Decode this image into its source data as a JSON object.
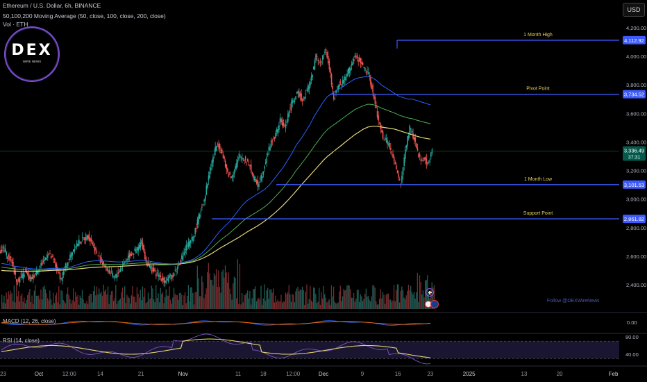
{
  "header": {
    "symbol": "Ethereum / U.S. Dollar, 6h, BINANCE",
    "ma_indicator": "50,100,200 Moving Average (50, close, 100, close, 200, close)",
    "vol_indicator": "Vol · ETH",
    "currency_button": "USD"
  },
  "logo": {
    "main": "DEX",
    "sub": "WIRE NEWS"
  },
  "watermark": "Follow @DEXWireNews",
  "colors": {
    "background": "#000000",
    "candle_up": "#26a69a",
    "candle_down": "#ef5350",
    "ma50": "#2962ff",
    "ma100": "#4caf50",
    "ma200": "#e6d67a",
    "level_line": "#3d5afe",
    "macd": "#2962ff",
    "signal": "#ff6d00",
    "rsi": "#7e57c2",
    "rsi_ma": "#e6d67a",
    "current_price": "#089981"
  },
  "chart_data": {
    "type": "line",
    "title": "Ethereum / U.S. Dollar, 6h, BINANCE",
    "price_axis": {
      "ticks": [
        "4,200.00",
        "4,000.00",
        "3,800.00",
        "3,600.00",
        "3,400.00",
        "3,200.00",
        "3,000.00",
        "2,800.00",
        "2,600.00",
        "2,400.00"
      ],
      "tick_values": [
        4200,
        4000,
        3800,
        3600,
        3400,
        3200,
        3000,
        2800,
        2600,
        2400
      ],
      "ylim": [
        2300,
        4300
      ]
    },
    "time_axis": {
      "labels": [
        "23",
        "Oct",
        "12:00",
        "14",
        "21",
        "Nov",
        "11",
        "18",
        "12:00",
        "Dec",
        "9",
        "16",
        "23",
        "2025",
        "13",
        "20",
        "Feb"
      ],
      "label_fraction": [
        0.0,
        0.06,
        0.107,
        0.155,
        0.218,
        0.283,
        0.368,
        0.407,
        0.453,
        0.5,
        0.56,
        0.615,
        0.665,
        0.725,
        0.81,
        0.865,
        0.948
      ]
    },
    "levels": [
      {
        "name": "1 Month High",
        "value": 4112.92,
        "tag": "4,112.92"
      },
      {
        "name": "Pivot Point",
        "value": 3734.52,
        "tag": "3,734.52"
      },
      {
        "name": "1 Month Low",
        "value": 3101.53,
        "tag": "3,101.53"
      },
      {
        "name": "Support Point",
        "value": 2861.82,
        "tag": "2,861.82"
      }
    ],
    "current_price": {
      "value": 3336.49,
      "tag": "3,336.49",
      "countdown": "37:31"
    },
    "close_series_daily": [
      2650,
      2600,
      2560,
      2420,
      2450,
      2490,
      2430,
      2470,
      2520,
      2560,
      2620,
      2580,
      2510,
      2440,
      2530,
      2600,
      2670,
      2700,
      2720,
      2740,
      2690,
      2620,
      2560,
      2520,
      2480,
      2450,
      2500,
      2550,
      2600,
      2620,
      2650,
      2700,
      2560,
      2520,
      2480,
      2460,
      2430,
      2440,
      2470,
      2520,
      2590,
      2670,
      2700,
      2780,
      2900,
      3000,
      3160,
      3300,
      3400,
      3320,
      3200,
      3150,
      3230,
      3300,
      3280,
      3250,
      3150,
      3100,
      3180,
      3300,
      3400,
      3450,
      3550,
      3500,
      3620,
      3700,
      3740,
      3700,
      3760,
      3850,
      4000,
      3950,
      4050,
      3920,
      3700,
      3800,
      3820,
      3880,
      3950,
      4000,
      3960,
      3900,
      3860,
      3700,
      3550,
      3430,
      3400,
      3320,
      3200,
      3100,
      3350,
      3500,
      3420,
      3300,
      3280,
      3250,
      3336
    ],
    "ma50": [
      2550,
      2545,
      2538,
      2530,
      2525,
      2520,
      2515,
      2512,
      2510,
      2510,
      2512,
      2515,
      2516,
      2515,
      2517,
      2520,
      2530,
      2540,
      2550,
      2560,
      2565,
      2568,
      2568,
      2567,
      2565,
      2562,
      2560,
      2560,
      2562,
      2565,
      2568,
      2572,
      2570,
      2566,
      2560,
      2556,
      2550,
      2548,
      2546,
      2548,
      2553,
      2560,
      2568,
      2580,
      2600,
      2625,
      2660,
      2700,
      2740,
      2780,
      2810,
      2840,
      2880,
      2920,
      2960,
      2990,
      3010,
      3030,
      3050,
      3070,
      3100,
      3140,
      3180,
      3220,
      3270,
      3320,
      3380,
      3420,
      3470,
      3520,
      3580,
      3630,
      3680,
      3720,
      3740,
      3760,
      3780,
      3800,
      3820,
      3840,
      3850,
      3855,
      3860,
      3850,
      3830,
      3800,
      3780,
      3760,
      3740,
      3720,
      3710,
      3700,
      3700,
      3690,
      3680,
      3670,
      3660
    ],
    "ma200": [
      2500,
      2498,
      2497,
      2496,
      2495,
      2494,
      2494,
      2494,
      2495,
      2496,
      2498,
      2500,
      2501,
      2502,
      2503,
      2505,
      2508,
      2511,
      2514,
      2517,
      2520,
      2522,
      2524,
      2525,
      2526,
      2527,
      2528,
      2530,
      2532,
      2534,
      2536,
      2538,
      2539,
      2540,
      2540,
      2540,
      2540,
      2541,
      2542,
      2544,
      2547,
      2550,
      2555,
      2562,
      2572,
      2585,
      2600,
      2618,
      2638,
      2658,
      2676,
      2694,
      2712,
      2730,
      2750,
      2770,
      2788,
      2806,
      2826,
      2848,
      2872,
      2898,
      2926,
      2956,
      2988,
      3022,
      3058,
      3095,
      3130,
      3165,
      3200,
      3235,
      3270,
      3300,
      3325,
      3350,
      3375,
      3400,
      3425,
      3450,
      3470,
      3490,
      3505,
      3510,
      3510,
      3505,
      3500,
      3495,
      3490,
      3480,
      3470,
      3460,
      3450,
      3440,
      3432,
      3425,
      3420
    ],
    "macd_axis": {
      "ticks": [
        "0.00"
      ]
    },
    "rsi_axis": {
      "ticks": [
        "80.00",
        "40.00"
      ]
    },
    "indicators": [
      {
        "name": "MACD (12, 26, close)"
      },
      {
        "name": "RSI (14, close)"
      }
    ]
  }
}
